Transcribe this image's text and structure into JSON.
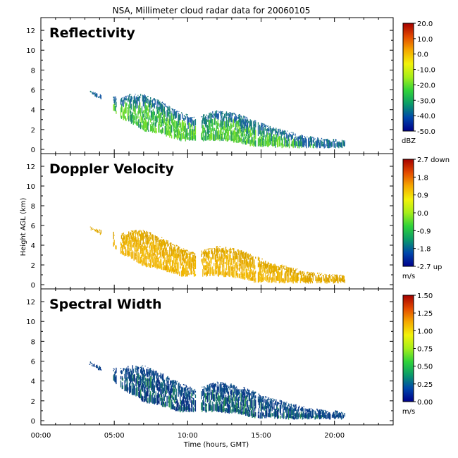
{
  "title": "NSA, Millimeter cloud radar data for 20060105",
  "xlabel": "Time (hours, GMT)",
  "ylabel": "Height AGL (km)",
  "x_ticks": [
    "00:00",
    "05:00",
    "10:00",
    "15:00",
    "20:00"
  ],
  "y_ticks": [
    "0",
    "2",
    "4",
    "6",
    "8",
    "10",
    "12"
  ],
  "panels": [
    {
      "label": "Reflectivity",
      "unit": "dBZ",
      "colorbar_ticks": [
        "20.0",
        "10.0",
        "0.0",
        "-10.0",
        "-20.0",
        "-30.0",
        "-40.0",
        "-50.0"
      ],
      "colorbar_range": [
        -50,
        20
      ],
      "palette": [
        "#00008b",
        "#0047ab",
        "#0a9a6a",
        "#2fd23a",
        "#a6ee1a",
        "#f2f20a",
        "#f5a800",
        "#e34a00",
        "#a50000"
      ],
      "echo_colors": [
        "#1f8f6a",
        "#3cc44a",
        "#7fe22a",
        "#5ad03a"
      ],
      "echo_top_colors": [
        "#1f5fa8",
        "#1a7f7a"
      ]
    },
    {
      "label": "Doppler Velocity",
      "unit": "m/s",
      "colorbar_ticks": [
        "2.7 down",
        "1.8",
        "0.9",
        "0.0",
        "-0.9",
        "-1.8",
        "-2.7 up"
      ],
      "colorbar_range": [
        -2.7,
        2.7
      ],
      "palette": [
        "#00008b",
        "#0047ab",
        "#0a9a6a",
        "#2fd23a",
        "#a6ee1a",
        "#f2f20a",
        "#f5a800",
        "#e34a00",
        "#a50000"
      ],
      "echo_colors": [
        "#f0b400",
        "#f5c518",
        "#e8a800",
        "#f2c030"
      ],
      "echo_top_colors": [
        "#e8b000",
        "#d9a000"
      ]
    },
    {
      "label": "Spectral Width",
      "unit": "m/s",
      "colorbar_ticks": [
        "1.50",
        "1.25",
        "1.00",
        "0.75",
        "0.50",
        "0.25",
        "0.00"
      ],
      "colorbar_range": [
        0,
        1.5
      ],
      "palette": [
        "#00008b",
        "#0047ab",
        "#0a9a6a",
        "#2fd23a",
        "#a6ee1a",
        "#f2f20a",
        "#f5a800",
        "#e34a00",
        "#a50000"
      ],
      "echo_colors": [
        "#0b3f8f",
        "#1a6f7a",
        "#2a8f5a",
        "#0a2f7f"
      ],
      "echo_top_colors": [
        "#0a3a8a",
        "#155a8a"
      ]
    }
  ],
  "chart_data": {
    "type": "heatmap",
    "title": "NSA, Millimeter cloud radar data for 20060105",
    "xlabel": "Time (hours, GMT)",
    "ylabel": "Height AGL (km)",
    "xlim": [
      0,
      24
    ],
    "ylim": [
      0,
      13
    ],
    "x_tick_values": [
      0,
      5,
      10,
      15,
      20
    ],
    "y_tick_values": [
      0,
      2,
      4,
      6,
      8,
      10,
      12
    ],
    "cloud_echo": {
      "start_hour": 3.3,
      "end_hour": 20.7,
      "boundary": [
        [
          3.3,
          5.6,
          6.0
        ],
        [
          4.0,
          5.0,
          5.6
        ],
        [
          5.5,
          3.0,
          5.3
        ],
        [
          6.0,
          2.7,
          5.6
        ],
        [
          7.0,
          1.8,
          5.6
        ],
        [
          8.0,
          1.5,
          5.0
        ],
        [
          9.5,
          0.8,
          3.8
        ],
        [
          10.5,
          0.8,
          3.3
        ],
        [
          12.0,
          0.8,
          4.0
        ],
        [
          13.5,
          0.6,
          3.6
        ],
        [
          14.5,
          0.2,
          3.0
        ],
        [
          15.5,
          0.2,
          2.4
        ],
        [
          16.5,
          0.1,
          2.0
        ],
        [
          18.0,
          0.1,
          1.4
        ],
        [
          19.5,
          0.1,
          1.1
        ],
        [
          20.7,
          0.1,
          1.0
        ]
      ]
    }
  }
}
